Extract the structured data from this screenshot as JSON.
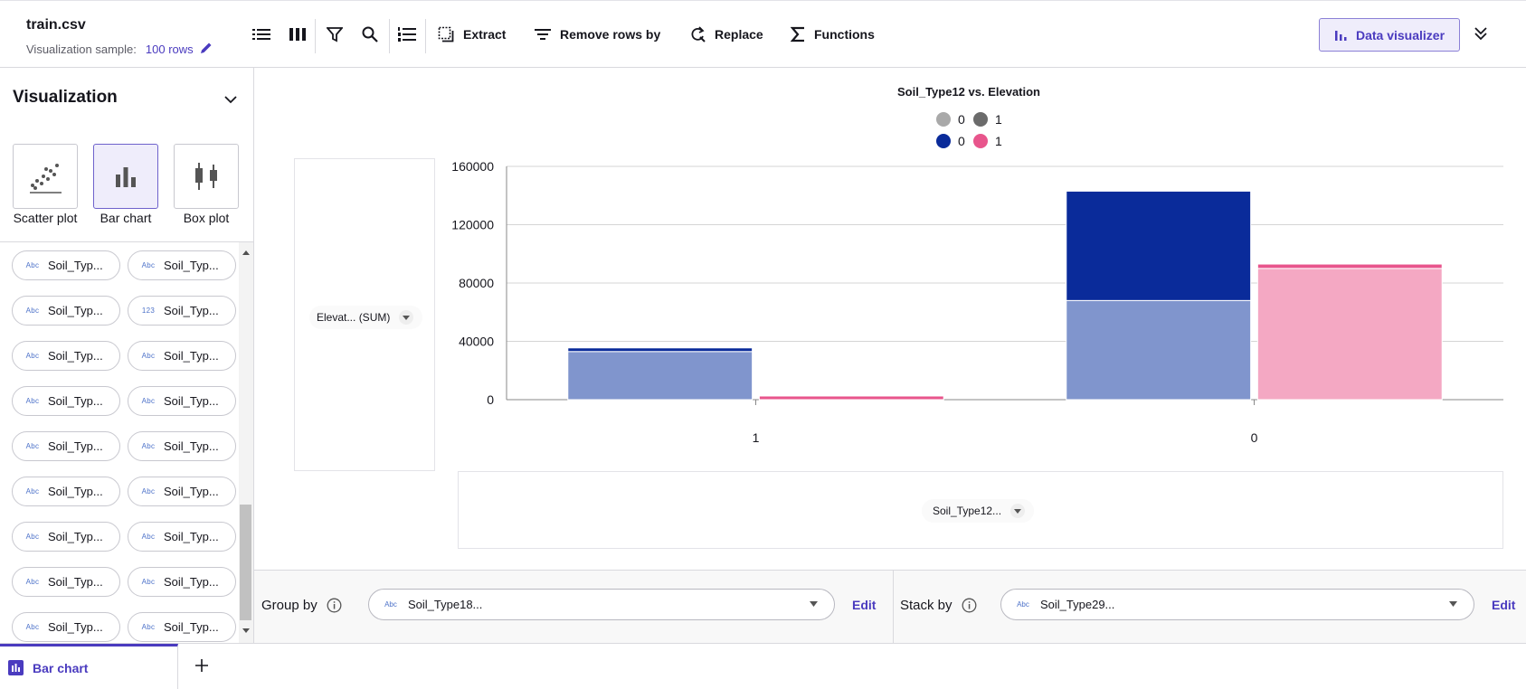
{
  "header": {
    "file_title": "train.csv",
    "sample_label": "Visualization sample:",
    "sample_link": "100 rows",
    "toolbar": {
      "extract": "Extract",
      "remove_rows": "Remove rows by",
      "replace": "Replace",
      "functions": "Functions",
      "data_visualizer": "Data visualizer"
    }
  },
  "left_panel": {
    "title": "Visualization",
    "chart_types": [
      {
        "label": "Scatter plot",
        "icon": "scatter-plot-icon"
      },
      {
        "label": "Bar chart",
        "icon": "bar-chart-icon",
        "active": true
      },
      {
        "label": "Box plot",
        "icon": "box-plot-icon"
      }
    ],
    "fields": [
      {
        "type": "Abc",
        "label": "Soil_Typ..."
      },
      {
        "type": "Abc",
        "label": "Soil_Typ..."
      },
      {
        "type": "Abc",
        "label": "Soil_Typ..."
      },
      {
        "type": "123",
        "label": "Soil_Typ..."
      },
      {
        "type": "Abc",
        "label": "Soil_Typ..."
      },
      {
        "type": "Abc",
        "label": "Soil_Typ..."
      },
      {
        "type": "Abc",
        "label": "Soil_Typ..."
      },
      {
        "type": "Abc",
        "label": "Soil_Typ..."
      },
      {
        "type": "Abc",
        "label": "Soil_Typ..."
      },
      {
        "type": "Abc",
        "label": "Soil_Typ..."
      },
      {
        "type": "Abc",
        "label": "Soil_Typ..."
      },
      {
        "type": "Abc",
        "label": "Soil_Typ..."
      },
      {
        "type": "Abc",
        "label": "Soil_Typ..."
      },
      {
        "type": "Abc",
        "label": "Soil_Typ..."
      },
      {
        "type": "Abc",
        "label": "Soil_Typ..."
      },
      {
        "type": "Abc",
        "label": "Soil_Typ..."
      },
      {
        "type": "Abc",
        "label": "Soil_Typ..."
      },
      {
        "type": "Abc",
        "label": "Soil_Typ..."
      }
    ]
  },
  "chart": {
    "y_field_chip": "Elevat... (SUM)",
    "x_field_chip": "Soil_Type12..."
  },
  "chart_data": {
    "type": "bar",
    "title": "Soil_Type12 vs. Elevation",
    "categories": [
      "1",
      "0"
    ],
    "group_values": [
      "0",
      "1"
    ],
    "stack_values": [
      "0",
      "1"
    ],
    "ylim": [
      0,
      160000
    ],
    "yticks": [
      0,
      40000,
      80000,
      120000,
      160000
    ],
    "ytick_labels": [
      "0",
      "40000",
      "80000",
      "120000",
      "160000"
    ],
    "legend": [
      {
        "label": "0",
        "color": "#a9a9a9"
      },
      {
        "label": "1",
        "color": "#6b6b6b"
      },
      {
        "label": "0",
        "color": "#0a2b9a"
      },
      {
        "label": "1",
        "color": "#e8558c"
      }
    ],
    "colors": {
      "group0_stack0": "#8095cd",
      "group0_stack1": "#0a2b9a",
      "group1_stack0": "#f4a8c3",
      "group1_stack1": "#e8558c"
    },
    "series": [
      {
        "category": "1",
        "group": "0",
        "stack0": 33000,
        "stack1": 2500
      },
      {
        "category": "1",
        "group": "1",
        "stack0": 0,
        "stack1": 2500
      },
      {
        "category": "0",
        "group": "0",
        "stack0": 68000,
        "stack1": 75000
      },
      {
        "category": "0",
        "group": "1",
        "stack0": 90000,
        "stack1": 3000
      }
    ],
    "grid": true
  },
  "group_stack": {
    "group_label": "Group by",
    "group_type": "Abc",
    "group_value": "Soil_Type18...",
    "group_edit": "Edit",
    "stack_label": "Stack by",
    "stack_type": "Abc",
    "stack_value": "Soil_Type29...",
    "stack_edit": "Edit"
  },
  "tabs": {
    "active_label": "Bar chart"
  }
}
